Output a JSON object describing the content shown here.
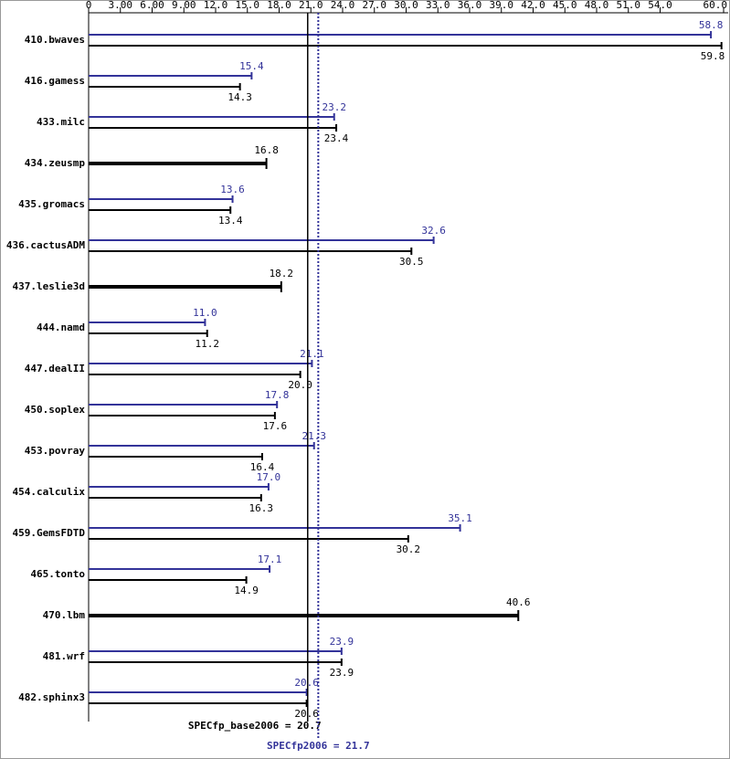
{
  "chart_data": {
    "type": "bar",
    "categories": [
      "410.bwaves",
      "416.gamess",
      "433.milc",
      "434.zeusmp",
      "435.gromacs",
      "436.cactusADM",
      "437.leslie3d",
      "444.namd",
      "447.dealII",
      "450.soplex",
      "453.povray",
      "454.calculix",
      "459.GemsFDTD",
      "465.tonto",
      "470.lbm",
      "481.wrf",
      "482.sphinx3"
    ],
    "series": [
      {
        "color": "#333399",
        "values": [
          58.8,
          15.4,
          23.2,
          null,
          13.6,
          32.6,
          null,
          11.0,
          21.1,
          17.8,
          21.3,
          17.0,
          35.1,
          17.1,
          null,
          23.9,
          20.6
        ],
        "value_labels": [
          "58.8",
          "15.4",
          "23.2",
          null,
          "13.6",
          "32.6",
          null,
          "11.0",
          "21.1",
          "17.8",
          "21.3",
          "17.0",
          "35.1",
          "17.1",
          null,
          "23.9",
          "20.6"
        ]
      },
      {
        "color": "#000000",
        "values": [
          59.8,
          14.3,
          23.4,
          16.8,
          13.4,
          30.5,
          18.2,
          11.2,
          20.0,
          17.6,
          16.4,
          16.3,
          30.2,
          14.9,
          40.6,
          23.9,
          20.6
        ],
        "value_labels": [
          "59.8",
          "14.3",
          "23.4",
          "16.8",
          "13.4",
          "30.5",
          "18.2",
          "11.2",
          "20.0",
          "17.6",
          "16.4",
          "16.3",
          "30.2",
          "14.9",
          "40.6",
          "23.9",
          "20.6"
        ]
      }
    ],
    "xlim": [
      0,
      60
    ],
    "xticks": [
      0,
      {
        "value": 3,
        "label": "3.00"
      },
      {
        "value": 6,
        "label": "6.00"
      },
      {
        "value": 9,
        "label": "9.00"
      },
      {
        "value": 12,
        "label": "12.0"
      },
      {
        "value": 15,
        "label": "15.0"
      },
      {
        "value": 18,
        "label": "18.0"
      },
      {
        "value": 21,
        "label": "21.0"
      },
      {
        "value": 24,
        "label": "24.0"
      },
      {
        "value": 27,
        "label": "27.0"
      },
      {
        "value": 30,
        "label": "30.0"
      },
      {
        "value": 33,
        "label": "33.0"
      },
      {
        "value": 36,
        "label": "36.0"
      },
      {
        "value": 39,
        "label": "39.0"
      },
      {
        "value": 42,
        "label": "42.0"
      },
      {
        "value": 45,
        "label": "45.0"
      },
      {
        "value": 48,
        "label": "48.0"
      },
      {
        "value": 51,
        "label": "51.0"
      },
      {
        "value": 54,
        "label": "54.0"
      },
      {
        "value": 60,
        "label": "60.0"
      }
    ],
    "reference_lines": [
      {
        "label": "SPECfp_base2006 = 20.7",
        "value": 20.7,
        "color": "#000000",
        "dashed": false
      },
      {
        "label": "SPECfp2006 = 21.7",
        "value": 21.7,
        "color": "#333399",
        "dashed": true
      }
    ]
  }
}
